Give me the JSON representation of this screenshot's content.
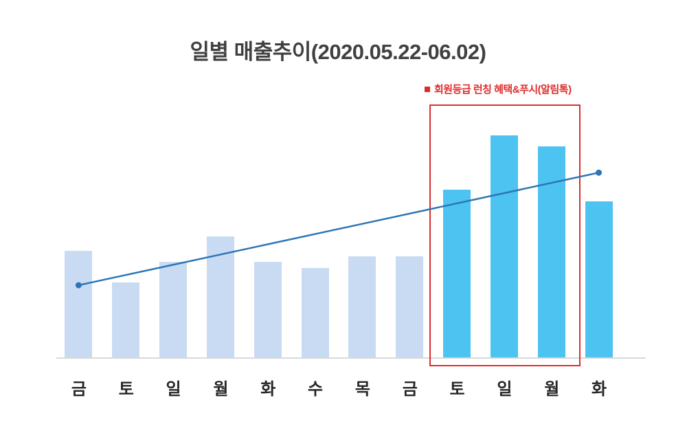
{
  "title": "일별 매출추이(2020.05.22-06.02)",
  "annotation": {
    "label": "회원등급 런칭 혜택&푸시(알림톡)",
    "color": "#e02b2b"
  },
  "chart_data": {
    "type": "bar",
    "title": "일별 매출추이(2020.05.22-06.02)",
    "categories": [
      "금",
      "토",
      "일",
      "월",
      "화",
      "수",
      "목",
      "금",
      "토",
      "일",
      "월",
      "화"
    ],
    "values": [
      37,
      26,
      33,
      42,
      33,
      31,
      35,
      35,
      58,
      77,
      73,
      54
    ],
    "unit": "relative-sales-index",
    "xlabel": "",
    "ylabel": "",
    "ylim": [
      0,
      100
    ],
    "y_axis_visible": false,
    "grid": false,
    "legend_position": "top-right",
    "bar_color_normal": "#c9dbf2",
    "bar_color_highlight": "#4cc3f0",
    "highlight_from_index": 8,
    "highlight_box": {
      "from_index": 8,
      "to_index": 10,
      "label": "회원등급 런칭 혜택&푸시(알림톡)",
      "color": "#e02b2b"
    },
    "trend_line": {
      "type": "linear",
      "from_index": 0,
      "from_value": 25,
      "to_index": 11,
      "to_value": 64,
      "color": "#2e75b6"
    }
  }
}
